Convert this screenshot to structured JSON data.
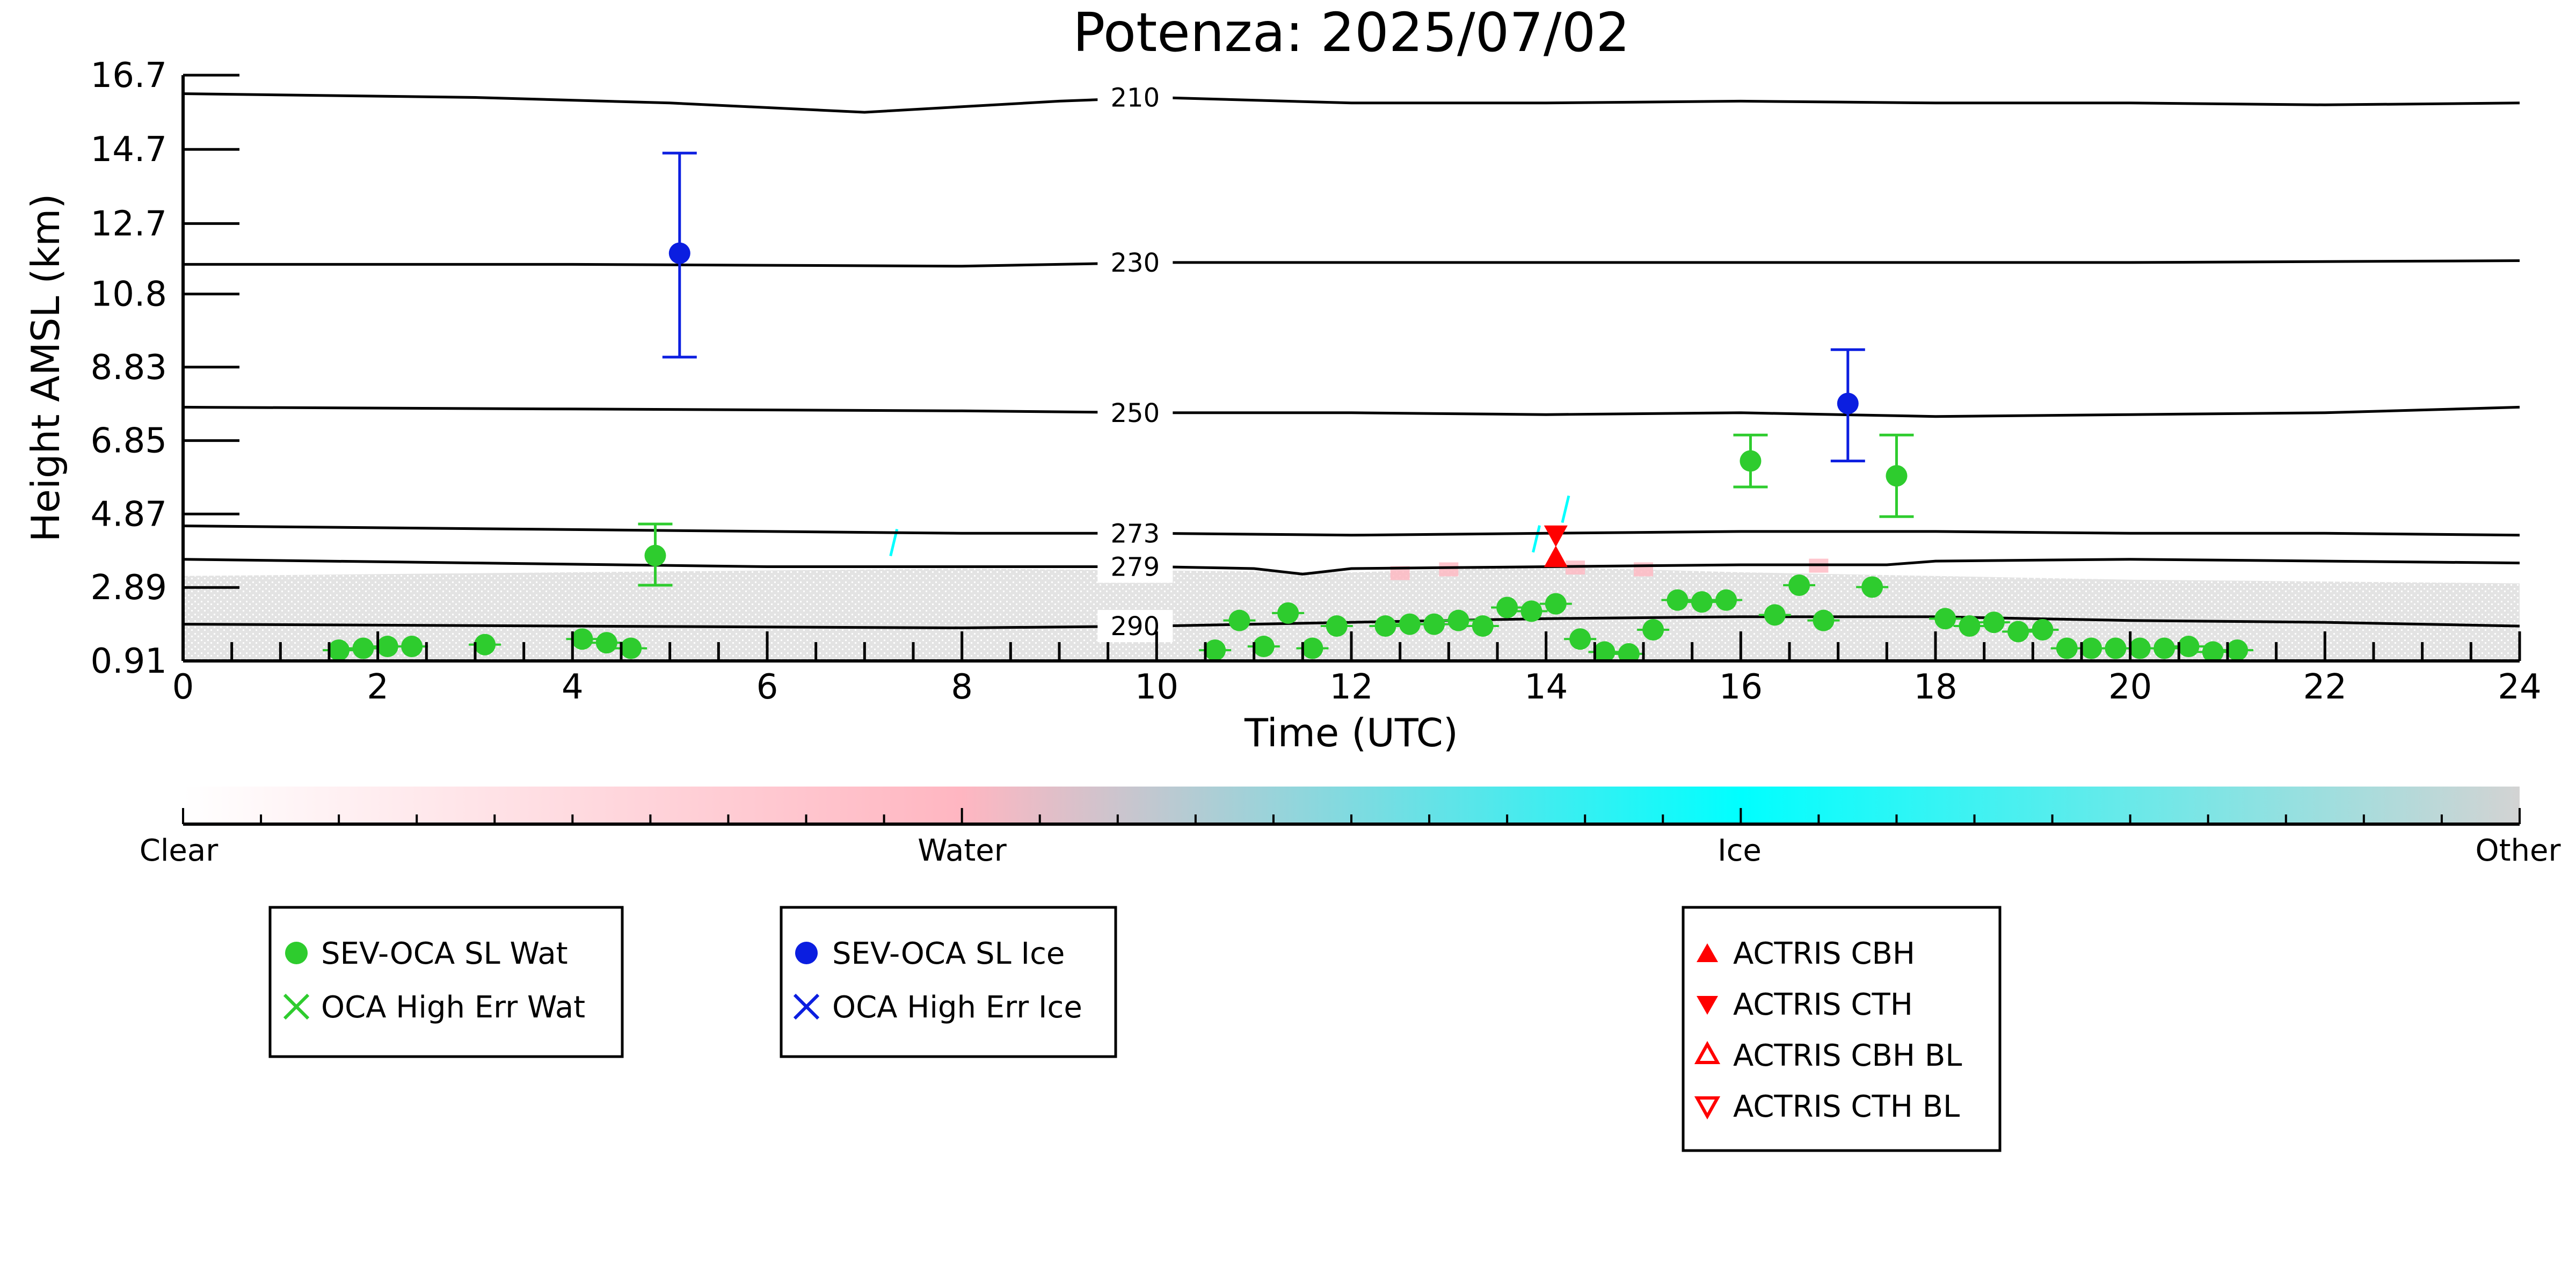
{
  "chart_data": {
    "type": "scatter",
    "title": "Potenza: 2025/07/02",
    "xlabel": "Time (UTC)",
    "ylabel": "Height AMSL (km)",
    "xlim": [
      0,
      24
    ],
    "ylim": [
      0.91,
      16.7
    ],
    "x_ticks": [
      0,
      2,
      4,
      6,
      8,
      10,
      12,
      14,
      16,
      18,
      20,
      22,
      24
    ],
    "y_ticks": [
      "0.91",
      "2.89",
      "4.87",
      "6.85",
      "8.83",
      "10.8",
      "12.7",
      "14.7",
      "16.7"
    ],
    "y_tick_values": [
      0.91,
      2.89,
      4.87,
      6.85,
      8.83,
      10.8,
      12.7,
      14.7,
      16.7
    ],
    "grid": false,
    "colorbar": {
      "labels": [
        "Clear",
        "Water",
        "Ice",
        "Other"
      ],
      "colors": [
        "#ffffff",
        "#ffb6c1",
        "#00ffff",
        "#d3d3d3"
      ]
    },
    "contours": [
      {
        "label": "210",
        "label_x": 10.0,
        "points": [
          [
            0,
            16.2
          ],
          [
            3,
            16.1
          ],
          [
            5,
            15.95
          ],
          [
            7,
            15.7
          ],
          [
            9,
            16.0
          ],
          [
            10,
            16.1
          ],
          [
            12,
            15.95
          ],
          [
            14,
            15.95
          ],
          [
            16,
            16.0
          ],
          [
            18,
            15.95
          ],
          [
            20,
            15.95
          ],
          [
            22,
            15.9
          ],
          [
            24,
            15.95
          ]
        ]
      },
      {
        "label": "230",
        "label_x": 10.0,
        "points": [
          [
            0,
            11.6
          ],
          [
            4,
            11.6
          ],
          [
            8,
            11.55
          ],
          [
            10,
            11.65
          ],
          [
            12,
            11.65
          ],
          [
            16,
            11.65
          ],
          [
            20,
            11.65
          ],
          [
            24,
            11.7
          ]
        ]
      },
      {
        "label": "250",
        "label_x": 10.0,
        "points": [
          [
            0,
            7.75
          ],
          [
            4,
            7.7
          ],
          [
            8,
            7.65
          ],
          [
            10,
            7.6
          ],
          [
            12,
            7.6
          ],
          [
            14,
            7.55
          ],
          [
            16,
            7.6
          ],
          [
            18,
            7.5
          ],
          [
            20,
            7.55
          ],
          [
            22,
            7.6
          ],
          [
            24,
            7.75
          ]
        ]
      },
      {
        "label": "273",
        "label_x": 10.0,
        "points": [
          [
            0,
            4.55
          ],
          [
            4,
            4.45
          ],
          [
            8,
            4.35
          ],
          [
            10,
            4.35
          ],
          [
            12,
            4.3
          ],
          [
            14,
            4.35
          ],
          [
            16,
            4.4
          ],
          [
            18,
            4.4
          ],
          [
            20,
            4.35
          ],
          [
            22,
            4.35
          ],
          [
            24,
            4.3
          ]
        ]
      },
      {
        "label": "279",
        "label_x": 10.0,
        "points": [
          [
            0,
            3.65
          ],
          [
            3,
            3.55
          ],
          [
            6,
            3.45
          ],
          [
            9,
            3.45
          ],
          [
            10,
            3.45
          ],
          [
            11,
            3.4
          ],
          [
            11.5,
            3.25
          ],
          [
            12,
            3.4
          ],
          [
            14,
            3.45
          ],
          [
            16,
            3.5
          ],
          [
            17.5,
            3.5
          ],
          [
            18,
            3.6
          ],
          [
            20,
            3.65
          ],
          [
            22,
            3.6
          ],
          [
            24,
            3.55
          ]
        ]
      },
      {
        "label": "290",
        "label_x": 10.0,
        "points": [
          [
            0,
            1.9
          ],
          [
            4,
            1.85
          ],
          [
            8,
            1.8
          ],
          [
            10,
            1.85
          ],
          [
            12,
            1.95
          ],
          [
            14,
            2.05
          ],
          [
            16,
            2.1
          ],
          [
            18,
            2.1
          ],
          [
            20,
            2.0
          ],
          [
            22,
            1.95
          ],
          [
            24,
            1.85
          ]
        ]
      }
    ],
    "background": {
      "other_band": [
        [
          0,
          3.2
        ],
        [
          4,
          3.3
        ],
        [
          8,
          3.4
        ],
        [
          10,
          3.35
        ],
        [
          12,
          3.3
        ],
        [
          14,
          3.45
        ],
        [
          16,
          3.3
        ],
        [
          18,
          3.2
        ],
        [
          20,
          3.1
        ],
        [
          22,
          3.05
        ],
        [
          24,
          3.0
        ]
      ],
      "water_patches": [
        [
          12.5,
          3.35
        ],
        [
          13.0,
          3.45
        ],
        [
          14.3,
          3.5
        ],
        [
          15.0,
          3.45
        ],
        [
          16.8,
          3.55
        ]
      ],
      "ice_patches": [
        [
          7.3,
          4.1
        ],
        [
          13.9,
          4.2
        ],
        [
          14.2,
          5.0
        ]
      ]
    },
    "series": [
      {
        "name": "SEV-OCA SL Wat",
        "color": "#2ecc2e",
        "marker": "circle",
        "points": [
          {
            "x": 1.6,
            "y": 1.2
          },
          {
            "x": 1.85,
            "y": 1.25
          },
          {
            "x": 2.1,
            "y": 1.3
          },
          {
            "x": 2.35,
            "y": 1.3
          },
          {
            "x": 3.1,
            "y": 1.35
          },
          {
            "x": 4.1,
            "y": 1.5
          },
          {
            "x": 4.35,
            "y": 1.4
          },
          {
            "x": 4.6,
            "y": 1.25
          },
          {
            "x": 4.85,
            "y": 3.75,
            "err": [
              2.95,
              4.6
            ]
          },
          {
            "x": 10.6,
            "y": 1.2
          },
          {
            "x": 10.85,
            "y": 2.0
          },
          {
            "x": 11.1,
            "y": 1.3
          },
          {
            "x": 11.35,
            "y": 2.2
          },
          {
            "x": 11.6,
            "y": 1.25
          },
          {
            "x": 11.85,
            "y": 1.85
          },
          {
            "x": 12.35,
            "y": 1.85
          },
          {
            "x": 12.6,
            "y": 1.9
          },
          {
            "x": 12.85,
            "y": 1.9
          },
          {
            "x": 13.1,
            "y": 2.0
          },
          {
            "x": 13.35,
            "y": 1.85
          },
          {
            "x": 13.6,
            "y": 2.35
          },
          {
            "x": 13.85,
            "y": 2.25
          },
          {
            "x": 14.1,
            "y": 2.45
          },
          {
            "x": 14.35,
            "y": 1.5
          },
          {
            "x": 14.6,
            "y": 1.15
          },
          {
            "x": 14.85,
            "y": 1.1
          },
          {
            "x": 15.1,
            "y": 1.75
          },
          {
            "x": 15.35,
            "y": 2.55
          },
          {
            "x": 15.6,
            "y": 2.5
          },
          {
            "x": 15.85,
            "y": 2.55
          },
          {
            "x": 16.1,
            "y": 6.3,
            "err": [
              5.6,
              7.0
            ]
          },
          {
            "x": 16.35,
            "y": 2.15
          },
          {
            "x": 16.6,
            "y": 2.95
          },
          {
            "x": 16.85,
            "y": 2.0
          },
          {
            "x": 17.35,
            "y": 2.9
          },
          {
            "x": 17.6,
            "y": 5.9,
            "err": [
              4.8,
              7.0
            ]
          },
          {
            "x": 18.1,
            "y": 2.05
          },
          {
            "x": 18.35,
            "y": 1.85
          },
          {
            "x": 18.6,
            "y": 1.95
          },
          {
            "x": 18.85,
            "y": 1.7
          },
          {
            "x": 19.1,
            "y": 1.75
          },
          {
            "x": 19.35,
            "y": 1.25
          },
          {
            "x": 19.6,
            "y": 1.25
          },
          {
            "x": 19.85,
            "y": 1.25
          },
          {
            "x": 20.1,
            "y": 1.25
          },
          {
            "x": 20.35,
            "y": 1.25
          },
          {
            "x": 20.6,
            "y": 1.3
          },
          {
            "x": 20.85,
            "y": 1.15
          },
          {
            "x": 21.1,
            "y": 1.2
          }
        ]
      },
      {
        "name": "SEV-OCA SL Ice",
        "color": "#0b1ee0",
        "marker": "circle",
        "points": [
          {
            "x": 5.1,
            "y": 11.9,
            "err": [
              9.1,
              14.6
            ]
          },
          {
            "x": 17.1,
            "y": 7.85,
            "err": [
              6.3,
              9.3
            ]
          }
        ]
      },
      {
        "name": "ACTRIS CBH",
        "color": "#ff0000",
        "marker": "triangle-up",
        "points": [
          {
            "x": 14.1,
            "y": 3.7
          }
        ]
      },
      {
        "name": "ACTRIS CTH",
        "color": "#ff0000",
        "marker": "triangle-down",
        "points": [
          {
            "x": 14.1,
            "y": 4.3
          }
        ]
      }
    ],
    "legend": {
      "placement": "below",
      "groups": [
        [
          "SEV-OCA SL Wat",
          "OCA High Err Wat"
        ],
        [
          "SEV-OCA SL Ice",
          "OCA High Err Ice"
        ],
        [
          "ACTRIS CBH",
          "ACTRIS CTH",
          "ACTRIS CBH BL",
          "ACTRIS CTH BL"
        ]
      ],
      "colors": {
        "SEV-OCA SL Wat": "#2ecc2e",
        "OCA High Err Wat": "#2ecc2e",
        "SEV-OCA SL Ice": "#0b1ee0",
        "OCA High Err Ice": "#0b1ee0",
        "ACTRIS CBH": "#ff0000",
        "ACTRIS CTH": "#ff0000",
        "ACTRIS CBH BL": "#ff0000",
        "ACTRIS CTH BL": "#ff0000"
      },
      "markers": {
        "SEV-OCA SL Wat": "circle",
        "OCA High Err Wat": "x",
        "SEV-OCA SL Ice": "circle",
        "OCA High Err Ice": "x",
        "ACTRIS CBH": "triangle-up",
        "ACTRIS CTH": "triangle-down",
        "ACTRIS CBH BL": "triangle-up-open",
        "ACTRIS CTH BL": "triangle-down-open"
      }
    }
  }
}
